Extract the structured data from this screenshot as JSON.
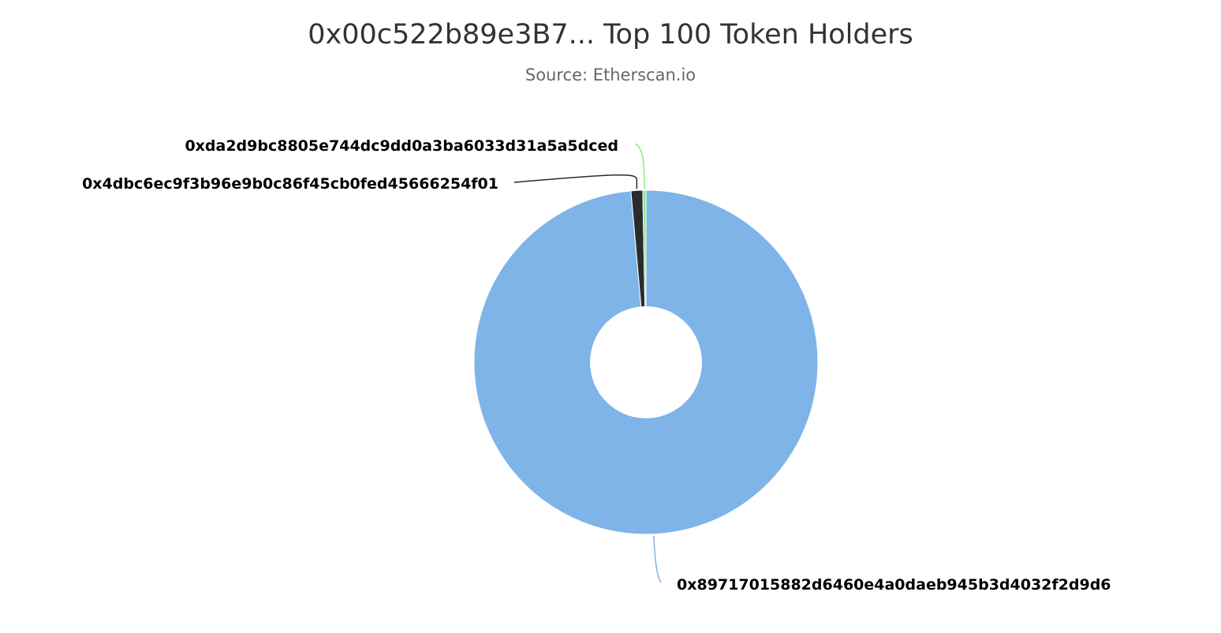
{
  "chart_data": {
    "type": "pie",
    "variant": "donut",
    "title": "0x00c522b89e3B7... Top 100 Token Holders",
    "subtitle": "Source: Etherscan.io",
    "series": [
      {
        "slices": [
          {
            "label": "0x89717015882d6460e4a0daeb945b3d4032f2d9d6",
            "value": 98.6,
            "color": "#7eb4e8"
          },
          {
            "label": "0x4dbc6ec9f3b96e9b0c86f45cb0fed45666254f01",
            "value": 1.1,
            "color": "#2b2b2f"
          },
          {
            "label": "0xda2d9bc8805e744dc9dd0a3ba6033d31a5a5dced",
            "value": 0.3,
            "color": "#8fe882"
          }
        ]
      }
    ],
    "legend": "none",
    "data_labels": "outside-with-connectors"
  }
}
